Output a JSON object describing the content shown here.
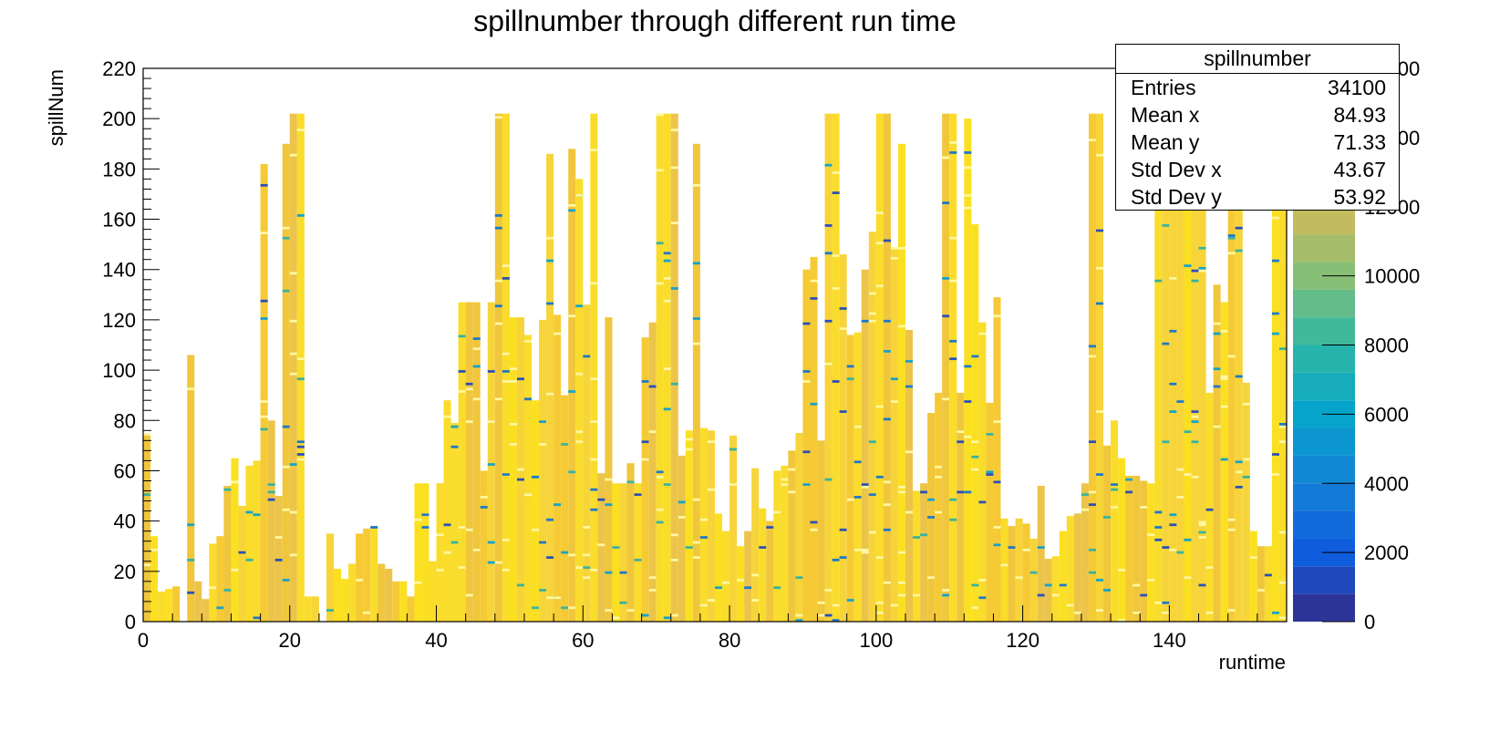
{
  "chart_data": {
    "type": "heatmap",
    "title": "spillnumber through different run time",
    "xlabel": "runtime",
    "ylabel": "spillNum",
    "xlim": [
      0,
      156
    ],
    "ylim": [
      0,
      220
    ],
    "x_ticks": [
      0,
      20,
      40,
      60,
      80,
      100,
      120,
      140
    ],
    "y_ticks": [
      0,
      20,
      40,
      60,
      80,
      100,
      120,
      140,
      160,
      180,
      200,
      220
    ],
    "colorbar": {
      "zlim": [
        0,
        16000
      ],
      "ticks": [
        0,
        2000,
        4000,
        6000,
        8000,
        10000,
        12000,
        14000,
        16000
      ],
      "palette": "kBird",
      "palette_colors": [
        "#352a87",
        "#0f5cdd",
        "#1481d6",
        "#06a4ca",
        "#2eb7a4",
        "#87bf77",
        "#d1bb59",
        "#fec832",
        "#f9fb0e"
      ]
    },
    "stats_box": {
      "title": "spillnumber",
      "entries_label": "Entries",
      "entries": "34100",
      "mean_x_label": "Mean x",
      "mean_x": "84.93",
      "mean_y_label": "Mean y",
      "mean_y": "71.33",
      "std_x_label": "Std Dev x",
      "std_x": "43.67",
      "std_y_label": "Std Dev y",
      "std_y": "53.92"
    },
    "column_max_spill": [
      75,
      34,
      12,
      13,
      14,
      0,
      106,
      16,
      9,
      31,
      34,
      54,
      65,
      46,
      62,
      64,
      182,
      80,
      50,
      190,
      202,
      202,
      10,
      10,
      0,
      35,
      21,
      17,
      23,
      35,
      37,
      38,
      23,
      21,
      16,
      16,
      10,
      55,
      55,
      24,
      55,
      88,
      79,
      127,
      127,
      127,
      60,
      127,
      202,
      202,
      121,
      121,
      114,
      88,
      120,
      186,
      122,
      90,
      188,
      176,
      126,
      202,
      59,
      121,
      55,
      55,
      63,
      55,
      113,
      119,
      202,
      202,
      202,
      66,
      76,
      190,
      77,
      76,
      43,
      36,
      74,
      30,
      36,
      61,
      45,
      40,
      60,
      62,
      68,
      75,
      140,
      145,
      72,
      202,
      202,
      146,
      114,
      115,
      140,
      155,
      202,
      202,
      149,
      190,
      116,
      52,
      55,
      83,
      91,
      202,
      202,
      91,
      200,
      158,
      119,
      87,
      129,
      41,
      38,
      41,
      39,
      33,
      54,
      25,
      26,
      36,
      42,
      43,
      55,
      202,
      202,
      70,
      80,
      65,
      58,
      58,
      56,
      55,
      202,
      202,
      202,
      202,
      202,
      202,
      202,
      91,
      134,
      127,
      186,
      202,
      95,
      36,
      30,
      30,
      202,
      202
    ]
  }
}
